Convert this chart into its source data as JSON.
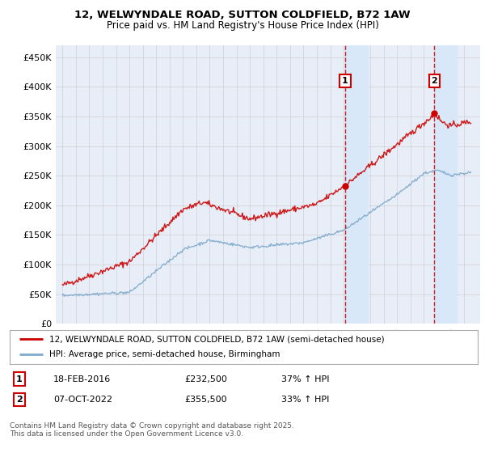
{
  "title_line1": "12, WELWYNDALE ROAD, SUTTON COLDFIELD, B72 1AW",
  "title_line2": "Price paid vs. HM Land Registry's House Price Index (HPI)",
  "ylabel_ticks": [
    "£0",
    "£50K",
    "£100K",
    "£150K",
    "£200K",
    "£250K",
    "£300K",
    "£350K",
    "£400K",
    "£450K"
  ],
  "ytick_values": [
    0,
    50000,
    100000,
    150000,
    200000,
    250000,
    300000,
    350000,
    400000,
    450000
  ],
  "ylim": [
    0,
    470000
  ],
  "background_color": "#e8eef8",
  "grid_color": "#c8c8c8",
  "red_line_color": "#cc0000",
  "blue_line_color": "#7faacc",
  "transaction1_year": 2016.12,
  "transaction1_price": 232500,
  "transaction2_year": 2022.77,
  "transaction2_price": 355500,
  "legend_line1": "12, WELWYNDALE ROAD, SUTTON COLDFIELD, B72 1AW (semi-detached house)",
  "legend_line2": "HPI: Average price, semi-detached house, Birmingham",
  "ann1_date": "18-FEB-2016",
  "ann1_price": "£232,500",
  "ann1_pct": "37% ↑ HPI",
  "ann2_date": "07-OCT-2022",
  "ann2_price": "£355,500",
  "ann2_pct": "33% ↑ HPI",
  "footer": "Contains HM Land Registry data © Crown copyright and database right 2025.\nThis data is licensed under the Open Government Licence v3.0.",
  "highlight_color": "#d8e8f8",
  "dashed_color": "#cc0000"
}
